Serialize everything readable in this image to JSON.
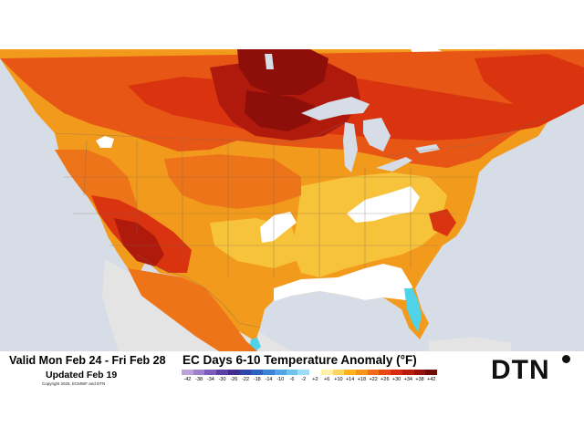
{
  "footer": {
    "valid_period": "Valid Mon Feb 24 - Fri Feb 28",
    "updated": "Updated Feb 19",
    "copyright": "Copyright 2025, ECMWF and DTN",
    "title": "EC Days 6-10 Temperature Anomaly (°F)",
    "logo": "DTN"
  },
  "legend": {
    "ticks": [
      "-42",
      "-38",
      "-34",
      "-30",
      "-26",
      "-22",
      "-18",
      "-14",
      "-10",
      "-6",
      "-2",
      "+2",
      "+6",
      "+10",
      "+14",
      "+18",
      "+22",
      "+26",
      "+30",
      "+34",
      "+38",
      "+42"
    ],
    "colors": [
      "#b9a3d6",
      "#9d7fcb",
      "#7b5cba",
      "#5a3fa4",
      "#3e2f90",
      "#2d46a8",
      "#2b63c3",
      "#3a84d8",
      "#4fa5e6",
      "#6fc3f0",
      "#9fdcf5",
      "#ffffff",
      "#fff1a8",
      "#ffd65a",
      "#ffb21e",
      "#f6931a",
      "#f06c18",
      "#e84a14",
      "#d92a10",
      "#bb1a0c",
      "#961108",
      "#6e0b05"
    ]
  },
  "map": {
    "colors": {
      "ocean": "#d6dde6",
      "land_outside": "#e4e4e4",
      "white": "#ffffff",
      "yellow": "#f7c33a",
      "orange": "#f29a1c",
      "dark_orange": "#ee7419",
      "red_orange": "#e85616",
      "red": "#d9330f",
      "dark_red": "#b01a0c",
      "maroon": "#8e0f0a",
      "cyan": "#4fd3e8",
      "lakes": "#d6dde6"
    }
  }
}
